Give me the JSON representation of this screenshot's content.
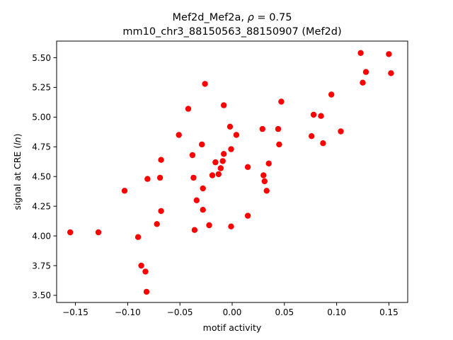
{
  "chart_data": {
    "type": "scatter",
    "title_line1": "Mef2d_Mef2a, ",
    "title_rho_symbol": "ρ",
    "title_rho_value": " = 0.75",
    "title_line2": "mm10_chr3_88150563_88150907 (Mef2d)",
    "xlabel": "motif activity",
    "ylabel_prefix": "signal at CRE (",
    "ylabel_italic": "ln",
    "ylabel_suffix": ")",
    "xlim": [
      -0.168,
      0.168
    ],
    "ylim": [
      3.44,
      5.64
    ],
    "xticks": [
      -0.15,
      -0.1,
      -0.05,
      0.0,
      0.05,
      0.1,
      0.15
    ],
    "xtick_labels": [
      "−0.15",
      "−0.10",
      "−0.05",
      "0.00",
      "0.05",
      "0.10",
      "0.15"
    ],
    "yticks": [
      3.5,
      3.75,
      4.0,
      4.25,
      4.5,
      4.75,
      5.0,
      5.25,
      5.5
    ],
    "ytick_labels": [
      "3.50",
      "3.75",
      "4.00",
      "4.25",
      "4.50",
      "4.75",
      "5.00",
      "5.25",
      "5.50"
    ],
    "grid": false,
    "marker_color": "#ff0000",
    "points": [
      {
        "x": -0.155,
        "y": 4.03
      },
      {
        "x": -0.128,
        "y": 4.03
      },
      {
        "x": -0.103,
        "y": 4.38
      },
      {
        "x": -0.09,
        "y": 3.99
      },
      {
        "x": -0.087,
        "y": 3.75
      },
      {
        "x": -0.083,
        "y": 3.7
      },
      {
        "x": -0.082,
        "y": 3.53
      },
      {
        "x": -0.081,
        "y": 4.48
      },
      {
        "x": -0.072,
        "y": 4.1
      },
      {
        "x": -0.069,
        "y": 4.49
      },
      {
        "x": -0.068,
        "y": 4.21
      },
      {
        "x": -0.068,
        "y": 4.64
      },
      {
        "x": -0.051,
        "y": 4.85
      },
      {
        "x": -0.042,
        "y": 5.07
      },
      {
        "x": -0.038,
        "y": 4.68
      },
      {
        "x": -0.037,
        "y": 4.49
      },
      {
        "x": -0.036,
        "y": 4.05
      },
      {
        "x": -0.034,
        "y": 4.3
      },
      {
        "x": -0.029,
        "y": 4.77
      },
      {
        "x": -0.028,
        "y": 4.22
      },
      {
        "x": -0.028,
        "y": 4.4
      },
      {
        "x": -0.026,
        "y": 5.28
      },
      {
        "x": -0.022,
        "y": 4.09
      },
      {
        "x": -0.019,
        "y": 4.51
      },
      {
        "x": -0.016,
        "y": 4.62
      },
      {
        "x": -0.013,
        "y": 4.52
      },
      {
        "x": -0.011,
        "y": 4.57
      },
      {
        "x": -0.009,
        "y": 4.63
      },
      {
        "x": -0.008,
        "y": 4.69
      },
      {
        "x": -0.008,
        "y": 5.1
      },
      {
        "x": -0.002,
        "y": 4.92
      },
      {
        "x": -0.001,
        "y": 4.73
      },
      {
        "x": -0.001,
        "y": 4.08
      },
      {
        "x": 0.004,
        "y": 4.85
      },
      {
        "x": 0.015,
        "y": 4.17
      },
      {
        "x": 0.015,
        "y": 4.58
      },
      {
        "x": 0.029,
        "y": 4.9
      },
      {
        "x": 0.03,
        "y": 4.51
      },
      {
        "x": 0.031,
        "y": 4.46
      },
      {
        "x": 0.033,
        "y": 4.38
      },
      {
        "x": 0.035,
        "y": 4.61
      },
      {
        "x": 0.044,
        "y": 4.9
      },
      {
        "x": 0.045,
        "y": 4.77
      },
      {
        "x": 0.047,
        "y": 5.13
      },
      {
        "x": 0.076,
        "y": 4.84
      },
      {
        "x": 0.078,
        "y": 5.02
      },
      {
        "x": 0.085,
        "y": 5.01
      },
      {
        "x": 0.087,
        "y": 4.78
      },
      {
        "x": 0.095,
        "y": 5.19
      },
      {
        "x": 0.104,
        "y": 4.88
      },
      {
        "x": 0.123,
        "y": 5.54
      },
      {
        "x": 0.125,
        "y": 5.29
      },
      {
        "x": 0.128,
        "y": 5.38
      },
      {
        "x": 0.15,
        "y": 5.53
      },
      {
        "x": 0.152,
        "y": 5.37
      }
    ]
  }
}
